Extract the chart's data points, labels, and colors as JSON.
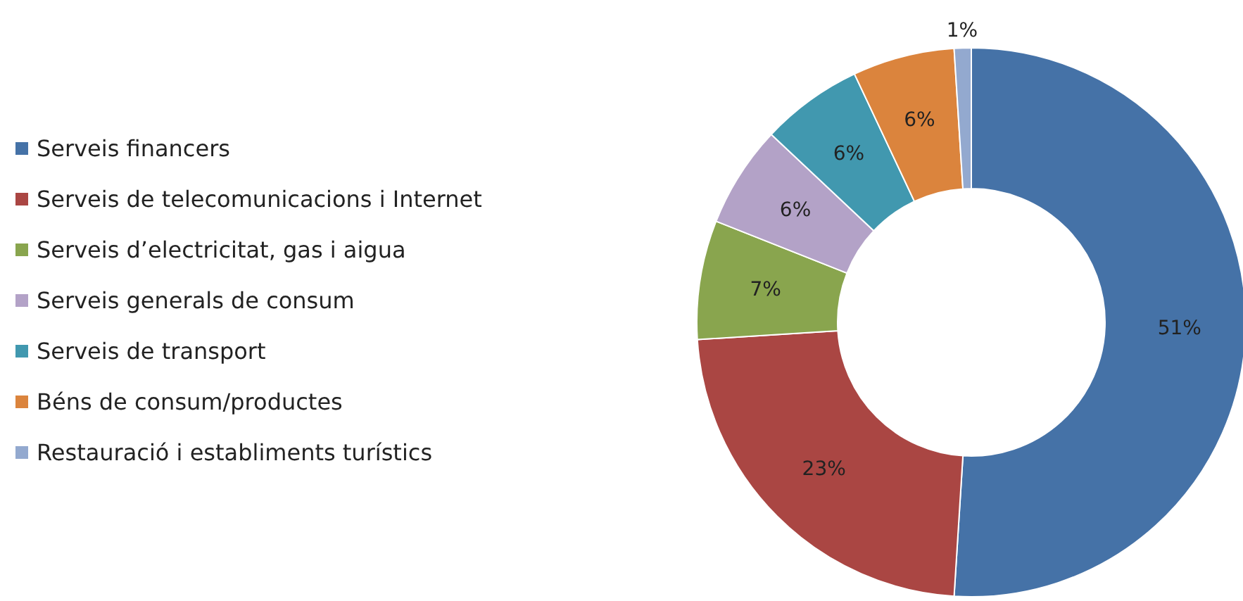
{
  "chart_data": {
    "type": "donut",
    "categories": [
      "Serveis financers",
      "Serveis de telecomunicacions i Internet",
      "Serveis d’electricitat, gas i aigua",
      "Serveis generals de consum",
      "Serveis de transport",
      "Béns de consum/productes",
      "Restauració i establiments turístics"
    ],
    "values": [
      51,
      23,
      7,
      6,
      6,
      6,
      1
    ],
    "value_labels": [
      "51%",
      "23%",
      "7%",
      "6%",
      "6%",
      "6%",
      "1%"
    ],
    "colors": [
      "#4572a7",
      "#aa4643",
      "#89a54e",
      "#b3a2c7",
      "#4198af",
      "#db843d",
      "#93a9cf"
    ],
    "legend": "left"
  }
}
